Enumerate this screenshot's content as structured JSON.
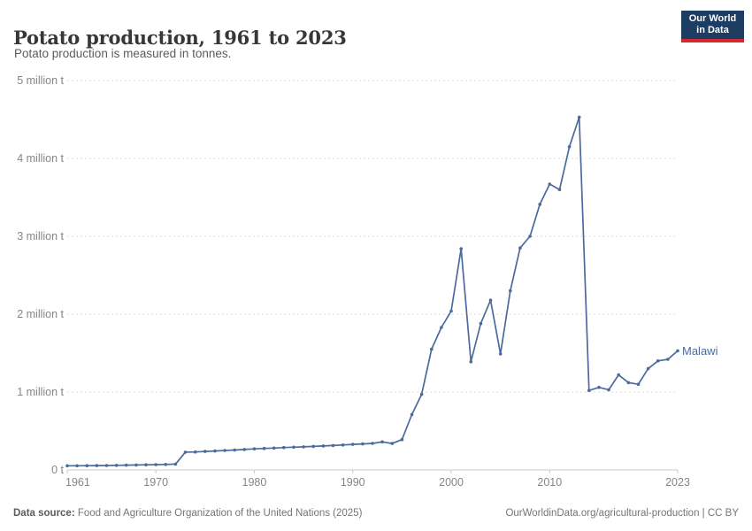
{
  "header": {
    "title": "Potato production, 1961 to 2023",
    "subtitle": "Potato production is measured in tonnes."
  },
  "logo": {
    "line1": "Our World",
    "line2": "in Data",
    "bg_color": "#1d3d63",
    "bar_color": "#d7282f"
  },
  "footer": {
    "source_label": "Data source:",
    "source_text": " Food and Agriculture Organization of the United Nations (2025)",
    "link_text": "OurWorldinData.org/agricultural-production | CC BY"
  },
  "colors": {
    "line": "#4C6A9C",
    "grid": "#dddddd",
    "axis": "#c8c8c8",
    "tick_label": "#858585"
  },
  "chart_data": {
    "type": "line",
    "title": "Potato production, 1961 to 2023",
    "subtitle": "Potato production is measured in tonnes.",
    "entity": "Malawi",
    "unit": "tonnes",
    "xlim": [
      1961,
      2023
    ],
    "ylim": [
      0,
      5000000
    ],
    "grid": "horizontal-dashed",
    "legend_position": "end-of-line-label",
    "x_ticks": [
      1961,
      1970,
      1980,
      1990,
      2000,
      2010,
      2023
    ],
    "y_ticks": [
      {
        "label": "5 million t",
        "value": 5000000
      },
      {
        "label": "4 million t",
        "value": 4000000
      },
      {
        "label": "3 million t",
        "value": 3000000
      },
      {
        "label": "2 million t",
        "value": 2000000
      },
      {
        "label": "1 million t",
        "value": 1000000
      },
      {
        "label": "0 t",
        "value": 0
      }
    ],
    "series": [
      {
        "name": "Malawi",
        "years": [
          1961,
          1962,
          1963,
          1964,
          1965,
          1966,
          1967,
          1968,
          1969,
          1970,
          1971,
          1972,
          1973,
          1974,
          1975,
          1976,
          1977,
          1978,
          1979,
          1980,
          1981,
          1982,
          1983,
          1984,
          1985,
          1986,
          1987,
          1988,
          1989,
          1990,
          1991,
          1992,
          1993,
          1994,
          1995,
          1996,
          1997,
          1998,
          1999,
          2000,
          2001,
          2002,
          2003,
          2004,
          2005,
          2006,
          2007,
          2008,
          2009,
          2010,
          2011,
          2012,
          2013,
          2014,
          2015,
          2016,
          2017,
          2018,
          2019,
          2020,
          2021,
          2022,
          2023
        ],
        "values": [
          53000,
          53000,
          54000,
          56000,
          57000,
          59000,
          61000,
          64000,
          66000,
          68000,
          71000,
          75000,
          228000,
          231000,
          237000,
          243000,
          250000,
          256000,
          263000,
          270000,
          276000,
          281000,
          288000,
          292000,
          297000,
          302000,
          308000,
          314000,
          321000,
          328000,
          334000,
          341000,
          360000,
          340000,
          390000,
          710000,
          970000,
          1550000,
          1830000,
          2040000,
          2840000,
          1390000,
          1880000,
          2180000,
          1490000,
          2300000,
          2850000,
          3000000,
          3410000,
          3670000,
          3600000,
          4150000,
          4530000,
          1020000,
          1060000,
          1030000,
          1220000,
          1120000,
          1100000,
          1300000,
          1400000,
          1420000,
          1530000
        ]
      }
    ]
  }
}
